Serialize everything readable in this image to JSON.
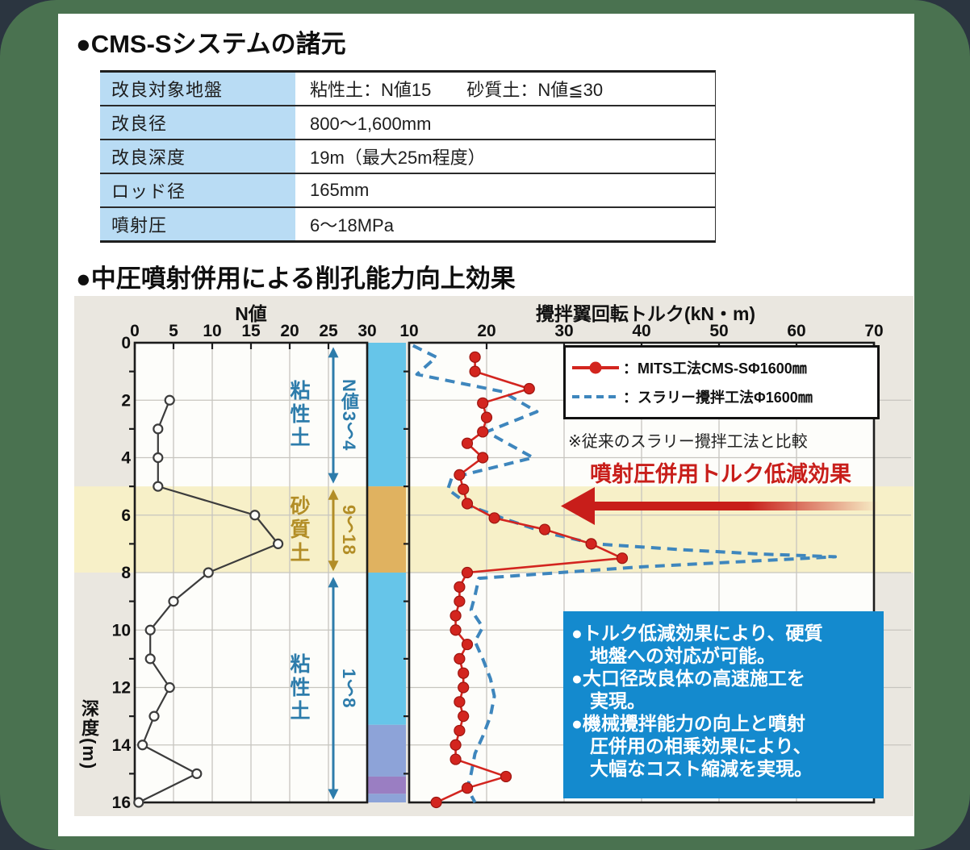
{
  "colors": {
    "outer_dark": "#2b3540",
    "frame_green": "#4a7250",
    "figure_bg": "#eae7e0",
    "plot_bg": "#fdfdfa",
    "grid": "#c7c5bf",
    "axis": "#1c1c1c",
    "sand_band": "#f7f0c8",
    "table_label_bg": "#b9dcf4",
    "n_line": "#3c3c3c",
    "legend_red": "#d3251f",
    "legend_blue": "#3e86bd",
    "box_blue": "#148ace",
    "accent_red": "#c81e1a"
  },
  "sections": {
    "title1": "●CMS-Sシステムの諸元",
    "title2": "●中圧噴射併用による削孔能力向上効果"
  },
  "spec_table": {
    "rows": [
      {
        "label": "改良対象地盤",
        "value": "粘性土：N値15　　砂質土：N値≦30"
      },
      {
        "label": "改良径",
        "value": "800〜1,600mm"
      },
      {
        "label": "改良深度",
        "value": "19m（最大25m程度）"
      },
      {
        "label": "ロッド径",
        "value": "165mm"
      },
      {
        "label": "噴射圧",
        "value": "6〜18MPa"
      }
    ]
  },
  "figure": {
    "depth_axis": {
      "label": "深度(m)",
      "ticks": [
        0,
        2,
        4,
        6,
        8,
        10,
        12,
        14,
        16
      ],
      "range": [
        0,
        16
      ]
    },
    "sand_band_depth": [
      5,
      8
    ],
    "soil_column": {
      "segments": [
        {
          "color": "#66c5e9",
          "from": 0,
          "to": 5
        },
        {
          "color": "#e0b260",
          "from": 5,
          "to": 8
        },
        {
          "color": "#66c5e9",
          "from": 8,
          "to": 13.3
        },
        {
          "color": "#8da3d8",
          "from": 13.3,
          "to": 15.1
        },
        {
          "color": "#9a7ec2",
          "from": 15.1,
          "to": 15.7
        },
        {
          "color": "#8da3d8",
          "from": 15.7,
          "to": 16
        }
      ]
    },
    "soil_sections": [
      {
        "name": "粘性土",
        "range_label": "N値3〜4",
        "color": "#2d7cab",
        "from": 0.15,
        "to": 4.9
      },
      {
        "name": "砂質土",
        "range_label": "9〜18",
        "color": "#b28d26",
        "from": 5.1,
        "to": 7.95
      },
      {
        "name": "粘性土",
        "range_label": "1〜8",
        "color": "#2d7cab",
        "from": 8.15,
        "to": 15.9
      }
    ],
    "legend": {
      "items": [
        {
          "label": "：MITS工法CMS-SΦ1600㎜",
          "style": "solid-red-dots"
        },
        {
          "label": "：スラリー攪拌工法Φ1600㎜",
          "style": "dashed-blue"
        }
      ]
    },
    "note": "※従来のスラリー攪拌工法と比較",
    "red_callout": {
      "text": "噴射圧併用トルク低減効果"
    },
    "benefits_box": {
      "items": [
        "●トルク低減効果により、硬質\n地盤への対応が可能。",
        "●大口径改良体の高速施工を\n実現。",
        "●機械攪拌能力の向上と噴射\n圧併用の相乗効果により、\n大幅なコスト縮減を実現。"
      ]
    }
  },
  "chart_data": [
    {
      "type": "line",
      "title": "N値",
      "xlabel": "N値",
      "ylabel": "深度(m)",
      "xlim": [
        0,
        30
      ],
      "ylim": [
        0,
        16
      ],
      "x_ticks": [
        0,
        5,
        10,
        15,
        20,
        25,
        30
      ],
      "y_ticks": [
        0,
        2,
        4,
        6,
        8,
        10,
        12,
        14,
        16
      ],
      "orientation": "depth-profile",
      "grid": true,
      "series": [
        {
          "name": "N値",
          "marker": "open-circle",
          "points": [
            [
              4.5,
              2
            ],
            [
              3,
              3
            ],
            [
              3,
              4
            ],
            [
              3,
              5
            ],
            [
              15.5,
              6
            ],
            [
              18.5,
              7
            ],
            [
              9.5,
              8
            ],
            [
              5,
              9
            ],
            [
              2,
              10
            ],
            [
              2,
              11
            ],
            [
              4.5,
              12
            ],
            [
              2.5,
              13
            ],
            [
              1,
              14
            ],
            [
              8,
              15
            ],
            [
              0.5,
              16
            ]
          ]
        }
      ]
    },
    {
      "type": "line",
      "title": "攪拌翼回転トルク(kN・m)",
      "xlabel": "攪拌翼回転トルク(kN・m)",
      "ylabel": "深度(m)",
      "xlim": [
        10,
        70
      ],
      "ylim": [
        0,
        16
      ],
      "x_ticks": [
        10,
        20,
        30,
        40,
        50,
        60,
        70
      ],
      "y_ticks": [
        0,
        2,
        4,
        6,
        8,
        10,
        12,
        14,
        16
      ],
      "orientation": "depth-profile",
      "grid": true,
      "series": [
        {
          "name": "：MITS工法CMS-SΦ1600㎜",
          "style": "solid",
          "marker": "filled-circle",
          "points": [
            [
              18.5,
              0.5
            ],
            [
              18.5,
              1.0
            ],
            [
              25.5,
              1.6
            ],
            [
              19.5,
              2.1
            ],
            [
              20,
              2.6
            ],
            [
              19.5,
              3.1
            ],
            [
              17.5,
              3.5
            ],
            [
              19.5,
              4.0
            ],
            [
              16.5,
              4.6
            ],
            [
              17,
              5.1
            ],
            [
              17.5,
              5.6
            ],
            [
              21,
              6.1
            ],
            [
              27.5,
              6.5
            ],
            [
              33.5,
              7.0
            ],
            [
              37.5,
              7.5
            ],
            [
              17.5,
              8.0
            ],
            [
              16.5,
              8.5
            ],
            [
              16.5,
              9.0
            ],
            [
              16,
              9.5
            ],
            [
              16,
              10.0
            ],
            [
              17.5,
              10.5
            ],
            [
              16.5,
              11.0
            ],
            [
              17,
              11.5
            ],
            [
              17,
              12.0
            ],
            [
              16.5,
              12.5
            ],
            [
              17,
              13.0
            ],
            [
              16.5,
              13.5
            ],
            [
              16,
              14.0
            ],
            [
              16,
              14.5
            ],
            [
              22.5,
              15.1
            ],
            [
              17.5,
              15.5
            ],
            [
              13.5,
              16.0
            ]
          ]
        },
        {
          "name": "：スラリー攪拌工法Φ1600㎜",
          "style": "dashed",
          "marker": "none",
          "points": [
            [
              10.5,
              0.1
            ],
            [
              13.5,
              0.5
            ],
            [
              11,
              1.1
            ],
            [
              22,
              1.7
            ],
            [
              26.5,
              2.4
            ],
            [
              20,
              3.1
            ],
            [
              26,
              4.0
            ],
            [
              15.5,
              4.7
            ],
            [
              15,
              5.1
            ],
            [
              18,
              5.7
            ],
            [
              22,
              6.1
            ],
            [
              27.5,
              6.6
            ],
            [
              34,
              7.0
            ],
            [
              45,
              7.2
            ],
            [
              55,
              7.35
            ],
            [
              65,
              7.45
            ],
            [
              40,
              7.8
            ],
            [
              19,
              8.2
            ],
            [
              18.5,
              8.8
            ],
            [
              18,
              9.3
            ],
            [
              19.5,
              9.9
            ],
            [
              18.5,
              10.4
            ],
            [
              19.5,
              11.0
            ],
            [
              20.5,
              11.7
            ],
            [
              21,
              12.3
            ],
            [
              20.5,
              13.0
            ],
            [
              19.5,
              13.7
            ],
            [
              18.5,
              14.3
            ],
            [
              18,
              15.0
            ],
            [
              17.5,
              15.5
            ],
            [
              18.5,
              16.0
            ]
          ]
        }
      ]
    }
  ]
}
